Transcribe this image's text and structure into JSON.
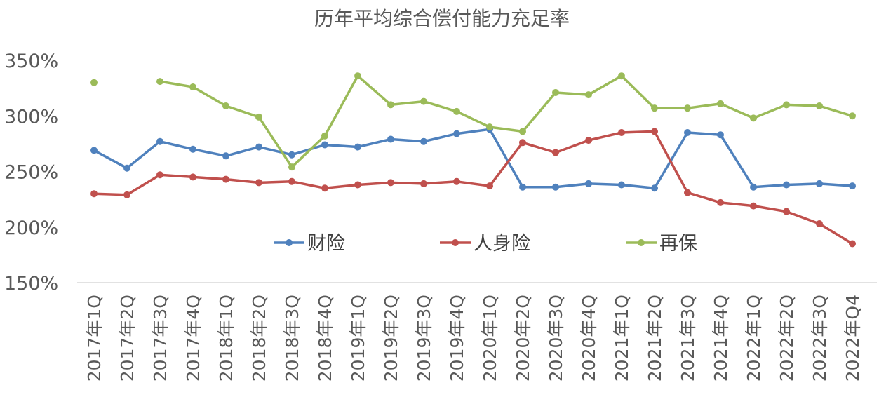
{
  "chart_data": {
    "type": "line",
    "title": "历年平均综合偿付能力充足率",
    "xlabel": "",
    "ylabel": "",
    "ylim": [
      150,
      350
    ],
    "yticks": [
      "150%",
      "200%",
      "250%",
      "300%",
      "350%"
    ],
    "ytick_values": [
      150,
      200,
      250,
      300,
      350
    ],
    "grid": false,
    "legend_position": "inside-center",
    "categories": [
      "2017年1Q",
      "2017年2Q",
      "2017年3Q",
      "2017年4Q",
      "2018年1Q",
      "2018年2Q",
      "2018年3Q",
      "2018年4Q",
      "2019年1Q",
      "2019年2Q",
      "2019年3Q",
      "2019年4Q",
      "2020年1Q",
      "2020年2Q",
      "2020年3Q",
      "2020年4Q",
      "2021年1Q",
      "2021年2Q",
      "2021年3Q",
      "2021年4Q",
      "2022年1Q",
      "2022年2Q",
      "2022年3Q",
      "2022年Q4"
    ],
    "series": [
      {
        "name": "财险",
        "color": "#4F81BD",
        "values": [
          269,
          253,
          277,
          270,
          264,
          272,
          265,
          274,
          272,
          279,
          277,
          284,
          288,
          236,
          236,
          239,
          238,
          235,
          285,
          283,
          236,
          238,
          239,
          237
        ]
      },
      {
        "name": "人身险",
        "color": "#C0504D",
        "values": [
          230,
          229,
          247,
          245,
          243,
          240,
          241,
          235,
          238,
          240,
          239,
          241,
          237,
          276,
          267,
          278,
          285,
          286,
          231,
          222,
          219,
          214,
          203,
          185
        ]
      },
      {
        "name": "再保",
        "color": "#9BBB59",
        "values": [
          330,
          null,
          331,
          326,
          309,
          299,
          254,
          282,
          336,
          310,
          313,
          304,
          290,
          286,
          321,
          319,
          336,
          307,
          307,
          311,
          298,
          310,
          309,
          300
        ]
      }
    ]
  },
  "colors": {
    "axis": "#D9D9D9",
    "text": "#595959"
  }
}
